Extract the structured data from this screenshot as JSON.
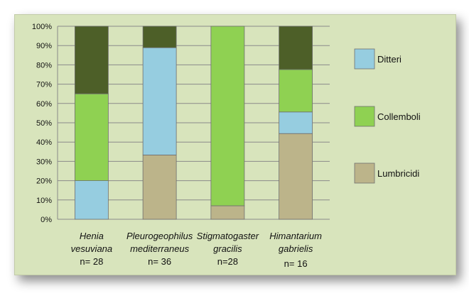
{
  "chart_data": {
    "type": "bar",
    "stacked": true,
    "percent": true,
    "categories": [
      {
        "name": [
          "Henia",
          "vesuviana"
        ],
        "n": "n= 28"
      },
      {
        "name": [
          "Pleurogeophilus",
          "mediterraneus"
        ],
        "n": "n= 36"
      },
      {
        "name": [
          "Stigmatogaster",
          "gracilis"
        ],
        "n": "n=28"
      },
      {
        "name": [
          "Himantarium",
          "gabrielis"
        ],
        "n": "n= 16"
      }
    ],
    "series": [
      {
        "name": "Lumbricidi",
        "color": "#bcb48a",
        "values": [
          0,
          33.3,
          7,
          44.4
        ],
        "legend": true
      },
      {
        "name": "Ditteri",
        "color": "#96cde0",
        "values": [
          20,
          55.6,
          0,
          11.2
        ],
        "legend": true
      },
      {
        "name": "Collemboli",
        "color": "#8fd152",
        "values": [
          45,
          0,
          93,
          22
        ],
        "legend": true
      },
      {
        "name": "",
        "color": "#4d5f28",
        "values": [
          35,
          11.1,
          0,
          22.4
        ],
        "legend": false
      }
    ],
    "y_ticks": [
      "0%",
      "10%",
      "20%",
      "30%",
      "40%",
      "50%",
      "60%",
      "70%",
      "80%",
      "90%",
      "100%"
    ],
    "ylim": [
      0,
      100
    ],
    "legend_order": [
      "Ditteri",
      "Collemboli",
      "Lumbricidi"
    ],
    "legend_position": "right",
    "background": "#d8e4bc",
    "grid": true
  }
}
